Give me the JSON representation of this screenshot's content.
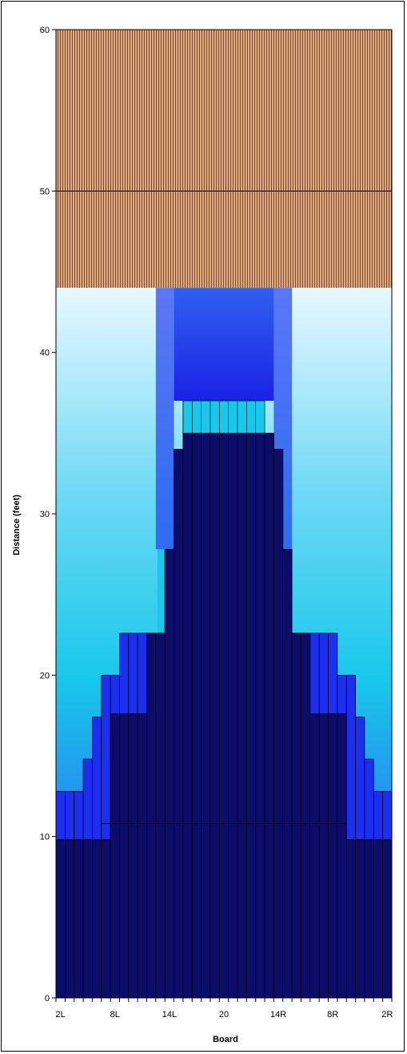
{
  "chart_data": {
    "type": "bar",
    "title": "",
    "xlabel": "Board",
    "ylabel": "Distance (feet)",
    "ylim": [
      0,
      60
    ],
    "y_ticks": [
      "0",
      "10",
      "20",
      "30",
      "40",
      "50",
      "60"
    ],
    "x_tick_labels": [
      "2L",
      "8L",
      "14L",
      "20",
      "14R",
      "8R",
      "2R"
    ],
    "boards": [
      "2L",
      "3L",
      "4L",
      "5L",
      "6L",
      "7L",
      "8L",
      "9L",
      "10L",
      "11L",
      "12L",
      "13L",
      "14L",
      "15L",
      "16L",
      "17L",
      "18L",
      "19L",
      "20",
      "19R",
      "18R",
      "17R",
      "16R",
      "15R",
      "14R",
      "13R",
      "12R",
      "11R",
      "10R",
      "9R",
      "8R",
      "7R",
      "6R",
      "5R",
      "4R",
      "3R",
      "2R"
    ],
    "series": [
      {
        "values": [
          9.8,
          9.8,
          9.8,
          9.8,
          9.8,
          9.8,
          17.6,
          17.6,
          17.6,
          17.6,
          22.6,
          22.6,
          27.8,
          34,
          35,
          35,
          35,
          35,
          35,
          35,
          35,
          35,
          35,
          35,
          34,
          27.8,
          22.6,
          22.6,
          17.6,
          17.6,
          17.6,
          17.6,
          9.8,
          9.8,
          9.8,
          9.8,
          9.8
        ]
      },
      {
        "values": [
          12.8,
          12.8,
          12.8,
          14.8,
          17.4,
          20,
          20,
          22.6,
          22.6,
          22.6,
          22.6,
          22.6,
          27.8,
          34,
          35,
          35,
          35,
          35,
          35,
          35,
          35,
          35,
          35,
          35,
          34,
          27.8,
          22.6,
          22.6,
          22.6,
          22.6,
          22.6,
          20,
          20,
          17.4,
          14.8,
          12.8,
          12.8
        ]
      }
    ],
    "reference_lines": [
      10.8,
      50
    ],
    "colors": {
      "dark_navy": "#0c0c6a",
      "blue": "#1c2ef0",
      "cyan": "#18c8ea",
      "lane_wood": "#e0aa80",
      "lane_grain": "#7a4a30",
      "pale": "#eefcff"
    }
  }
}
